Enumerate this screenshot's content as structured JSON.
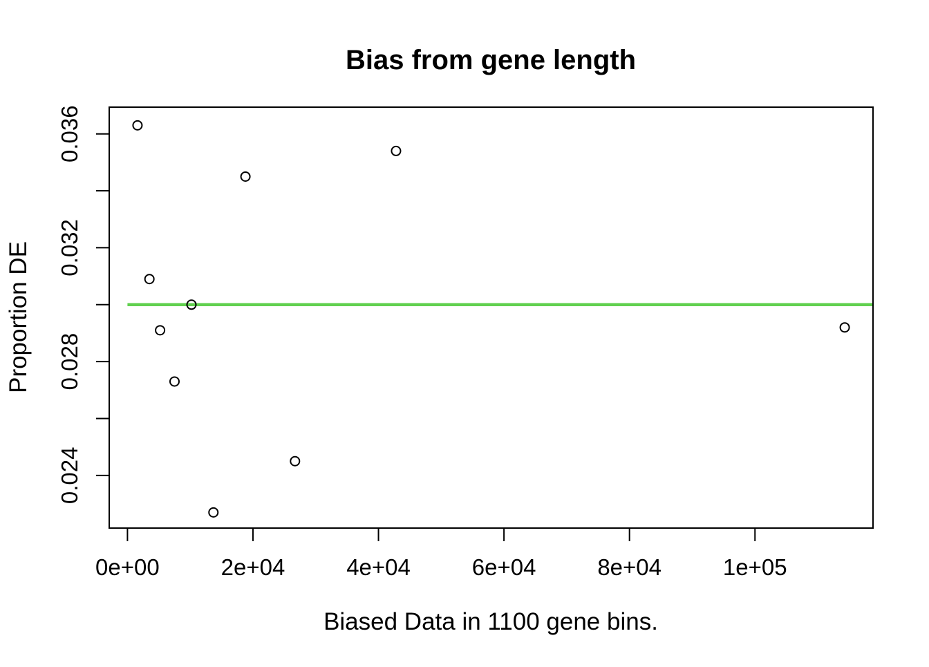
{
  "chart_data": {
    "type": "scatter",
    "title": "Bias from gene length",
    "xlabel": "Biased Data in 1100 gene bins.",
    "ylabel": "Proportion DE",
    "xlim": [
      -2908,
      118808
    ],
    "ylim": [
      0.02215,
      0.03694
    ],
    "grid": false,
    "legend": "none",
    "x_ticks": {
      "values": [
        0,
        20000,
        40000,
        60000,
        80000,
        100000
      ],
      "labels": [
        "0e+00",
        "2e+04",
        "4e+04",
        "6e+04",
        "8e+04",
        "1e+05"
      ]
    },
    "y_ticks": {
      "values": [
        0.024,
        0.026,
        0.028,
        0.03,
        0.032,
        0.034,
        0.036
      ],
      "labels": [
        "0.024",
        "",
        "0.028",
        "",
        "0.032",
        "",
        "0.036"
      ]
    },
    "points": [
      {
        "x": 1600,
        "y": 0.0363
      },
      {
        "x": 3500,
        "y": 0.0309
      },
      {
        "x": 5200,
        "y": 0.0291
      },
      {
        "x": 7500,
        "y": 0.0273
      },
      {
        "x": 10200,
        "y": 0.03
      },
      {
        "x": 13700,
        "y": 0.0227
      },
      {
        "x": 18800,
        "y": 0.0345
      },
      {
        "x": 26700,
        "y": 0.0245
      },
      {
        "x": 42800,
        "y": 0.0354
      },
      {
        "x": 114300,
        "y": 0.0292
      }
    ],
    "reference_line": {
      "y": 0.03,
      "x_start": 0,
      "x_end": 118808,
      "color": "#61D04F",
      "width": 4.5
    },
    "colors": {
      "background": "#ffffff",
      "foreground": "#000000",
      "point_stroke": "#000000",
      "reference": "#61D04F"
    }
  }
}
